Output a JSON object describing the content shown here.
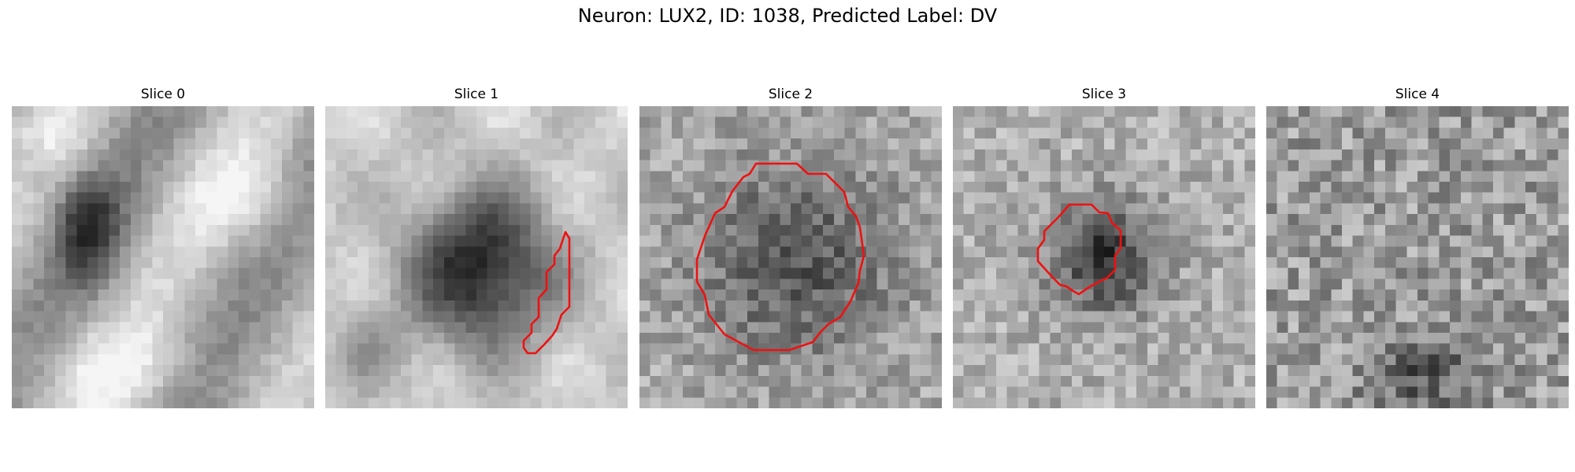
{
  "figure": {
    "title": "Neuron: LUX2, ID: 1038, Predicted Label: DV"
  },
  "slices": [
    {
      "label": "Slice 0",
      "contour_color": "#ee1111"
    },
    {
      "label": "Slice 1",
      "contour_color": "#ee1111"
    },
    {
      "label": "Slice 2",
      "contour_color": "#ee1111"
    },
    {
      "label": "Slice 3",
      "contour_color": "#ee1111"
    },
    {
      "label": "Slice 4",
      "contour_color": "#ee1111"
    }
  ],
  "colormap": "grayscale"
}
